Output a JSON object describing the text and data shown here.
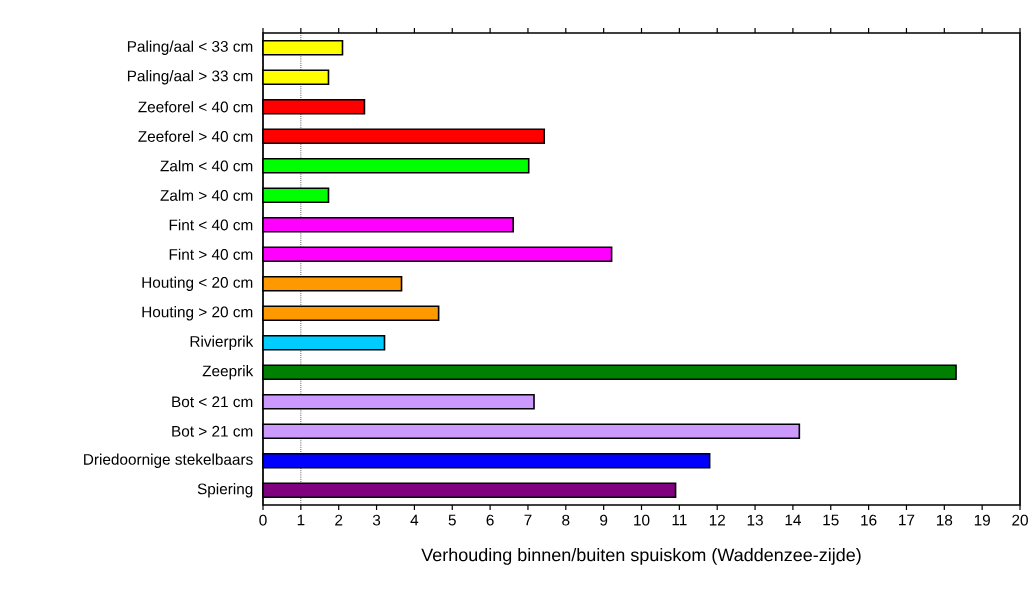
{
  "chart_data": {
    "type": "bar",
    "orientation": "horizontal",
    "xlabel": "Verhouding binnen/buiten spuiskom (Waddenzee-zijde)",
    "categories": [
      "Paling/aal < 33 cm",
      "Paling/aal > 33 cm",
      "Zeeforel < 40 cm",
      "Zeeforel > 40 cm",
      "Zalm < 40 cm",
      "Zalm > 40 cm",
      "Fint < 40  cm",
      "Fint > 40 cm",
      "Houting < 20 cm",
      "Houting > 20 cm",
      "Rivierprik",
      "Zeeprik",
      "Bot < 21 cm",
      "Bot > 21 cm",
      "Driedoornige stekelbaars",
      "Spiering"
    ],
    "values": [
      2.1,
      1.73,
      2.68,
      7.43,
      7.02,
      1.73,
      6.61,
      9.21,
      3.66,
      4.64,
      3.21,
      18.31,
      7.16,
      14.17,
      11.8,
      10.9
    ],
    "colors": [
      "#ffff00",
      "#ffff00",
      "#ff0000",
      "#ff0000",
      "#00ff00",
      "#00ff00",
      "#ff00ff",
      "#ff00ff",
      "#ff9900",
      "#ff9900",
      "#00ccff",
      "#008000",
      "#cc99ff",
      "#cc99ff",
      "#0000ff",
      "#800080"
    ],
    "xlim": [
      0,
      20
    ],
    "xticks": [
      0,
      1,
      2,
      3,
      4,
      5,
      6,
      7,
      8,
      9,
      10,
      11,
      12,
      13,
      14,
      15,
      16,
      17,
      18,
      19,
      20
    ],
    "ref_lines": [
      {
        "axis": "x",
        "value": 1,
        "line_style": "dotted"
      }
    ],
    "grid": false
  }
}
